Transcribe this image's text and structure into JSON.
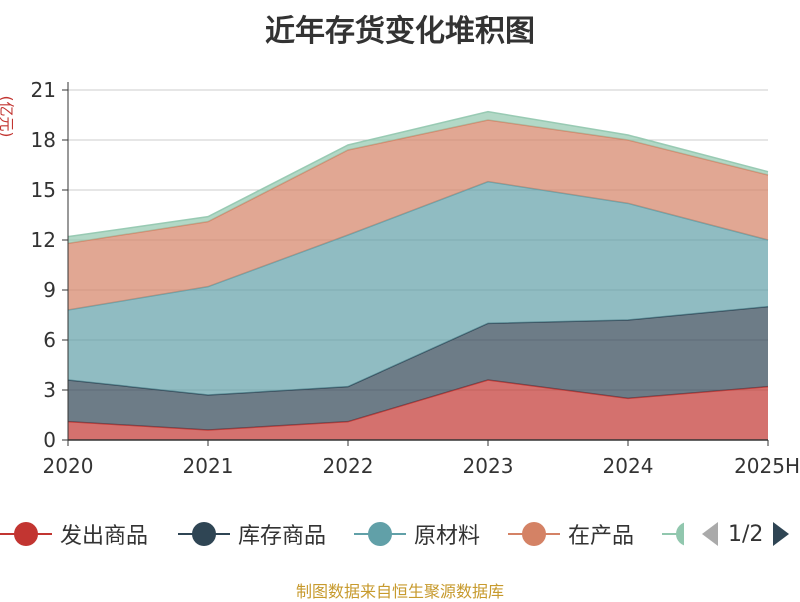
{
  "title": "近年存货变化堆积图",
  "unit_label": "(亿元)",
  "source_text": "制图数据来自恒生聚源数据库",
  "legend_page": "1/2",
  "chart_data": {
    "type": "area",
    "stacked": true,
    "title": "近年存货变化堆积图",
    "ylabel": "(亿元)",
    "categories": [
      "2020",
      "2021",
      "2022",
      "2023",
      "2024",
      "2025H"
    ],
    "ylim": [
      0,
      21
    ],
    "yticks": [
      0,
      3,
      6,
      9,
      12,
      15,
      18,
      21
    ],
    "grid": true,
    "legend_position": "bottom",
    "series": [
      {
        "name": "发出商品",
        "color": "#c23531",
        "values": [
          1.1,
          0.6,
          1.1,
          3.6,
          2.5,
          3.2
        ]
      },
      {
        "name": "库存商品",
        "color": "#2f4554",
        "values": [
          2.5,
          2.1,
          2.1,
          3.4,
          4.7,
          4.8
        ]
      },
      {
        "name": "原材料",
        "color": "#61a0a8",
        "values": [
          4.2,
          6.5,
          9.1,
          8.5,
          7.0,
          4.0
        ]
      },
      {
        "name": "在产品",
        "color": "#d48265",
        "values": [
          4.0,
          3.9,
          5.1,
          3.7,
          3.8,
          3.9
        ]
      },
      {
        "name": "",
        "color": "#91c7ae",
        "values": [
          0.4,
          0.3,
          0.3,
          0.5,
          0.3,
          0.2
        ]
      }
    ]
  }
}
